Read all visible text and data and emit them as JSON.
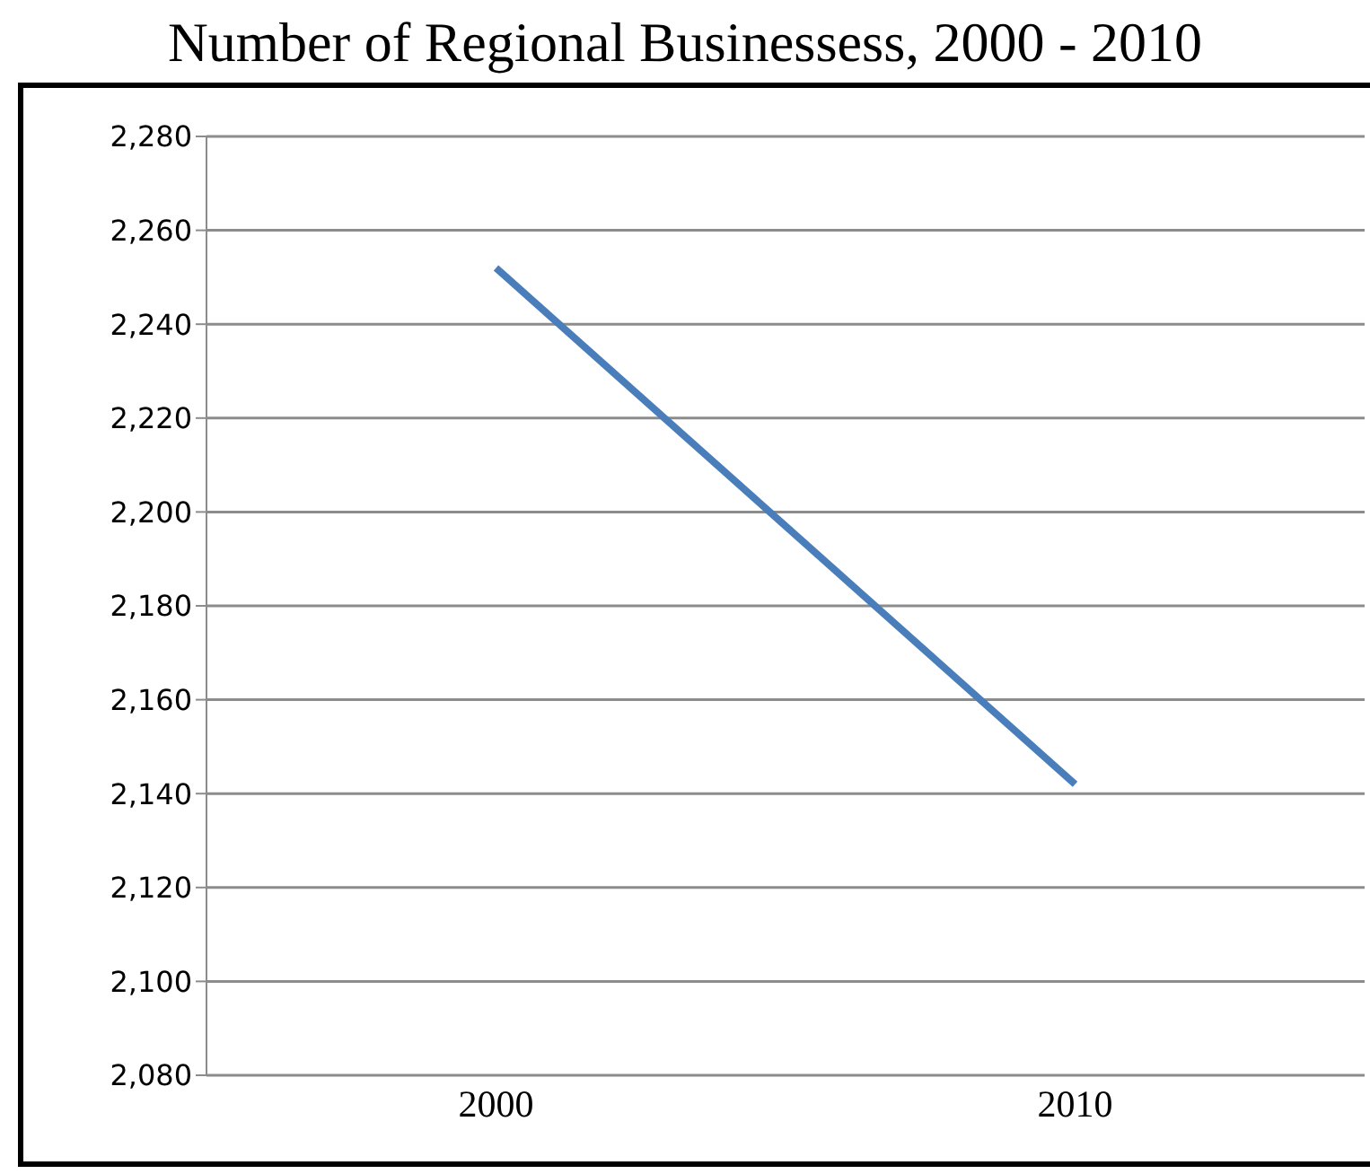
{
  "chart_data": {
    "type": "line",
    "title": "Number of Regional Businessess, 2000 - 2010",
    "categories": [
      "2000",
      "2010"
    ],
    "series": [
      {
        "color": "#4a7ebb",
        "values": [
          2252,
          2142
        ]
      }
    ],
    "ylim": [
      2080,
      2280
    ],
    "yticks": [
      {
        "value": 2080,
        "label": "2,080"
      },
      {
        "value": 2100,
        "label": "2,100"
      },
      {
        "value": 2120,
        "label": "2,120"
      },
      {
        "value": 2140,
        "label": "2,140"
      },
      {
        "value": 2160,
        "label": "2,160"
      },
      {
        "value": 2180,
        "label": "2,180"
      },
      {
        "value": 2200,
        "label": "2,200"
      },
      {
        "value": 2220,
        "label": "2,220"
      },
      {
        "value": 2240,
        "label": "2,240"
      },
      {
        "value": 2260,
        "label": "2,260"
      },
      {
        "value": 2280,
        "label": "2,280"
      }
    ],
    "grid": "y",
    "legend": false,
    "marker": "none",
    "line_style": "solid"
  }
}
